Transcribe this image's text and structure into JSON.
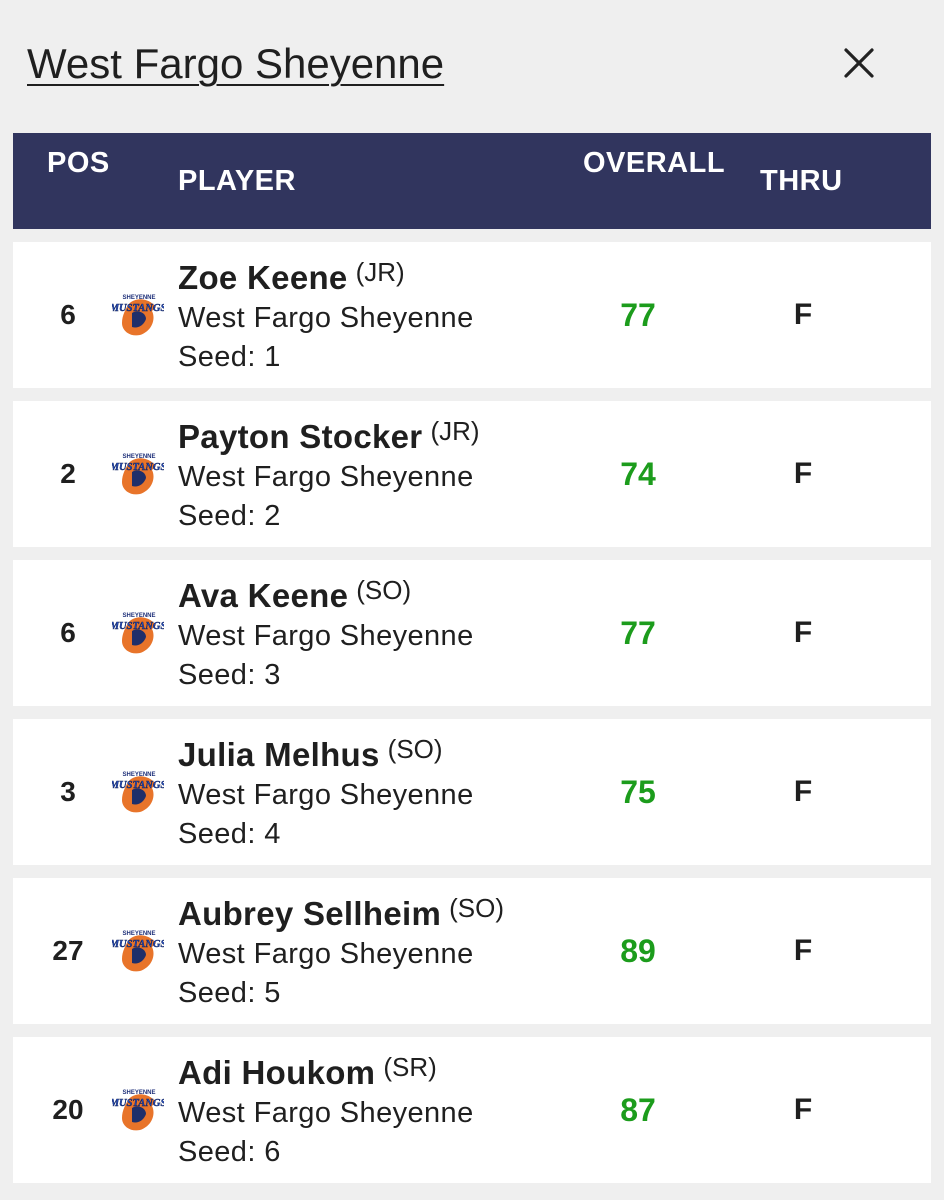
{
  "header": {
    "team_title": "West Fargo Sheyenne"
  },
  "table": {
    "columns": {
      "pos": "POS",
      "player": "PLAYER",
      "overall": "OVERALL",
      "thru": "THRU"
    },
    "rows": [
      {
        "pos": "6",
        "name": "Zoe Keene",
        "class": "(JR)",
        "team": "West Fargo Sheyenne",
        "seed": "Seed: 1",
        "overall": "77",
        "thru": "F"
      },
      {
        "pos": "2",
        "name": "Payton Stocker",
        "class": "(JR)",
        "team": "West Fargo Sheyenne",
        "seed": "Seed: 2",
        "overall": "74",
        "thru": "F"
      },
      {
        "pos": "6",
        "name": "Ava Keene",
        "class": "(SO)",
        "team": "West Fargo Sheyenne",
        "seed": "Seed: 3",
        "overall": "77",
        "thru": "F"
      },
      {
        "pos": "3",
        "name": "Julia Melhus",
        "class": "(SO)",
        "team": "West Fargo Sheyenne",
        "seed": "Seed: 4",
        "overall": "75",
        "thru": "F"
      },
      {
        "pos": "27",
        "name": "Aubrey Sellheim",
        "class": "(SO)",
        "team": "West Fargo Sheyenne",
        "seed": "Seed: 5",
        "overall": "89",
        "thru": "F"
      },
      {
        "pos": "20",
        "name": "Adi Houkom",
        "class": "(SR)",
        "team": "West Fargo Sheyenne",
        "seed": "Seed: 6",
        "overall": "87",
        "thru": "F"
      }
    ]
  },
  "logo": {
    "icon": "mustangs-logo-icon",
    "wordmark_top": "SHEYENNE",
    "wordmark": "MUSTANGS"
  },
  "colors": {
    "header_bg": "#31355e",
    "score_green": "#1c9c1c",
    "page_bg": "#efefef",
    "row_bg": "#ffffff",
    "logo_blue": "#2b55c8",
    "logo_orange": "#e8742a"
  }
}
